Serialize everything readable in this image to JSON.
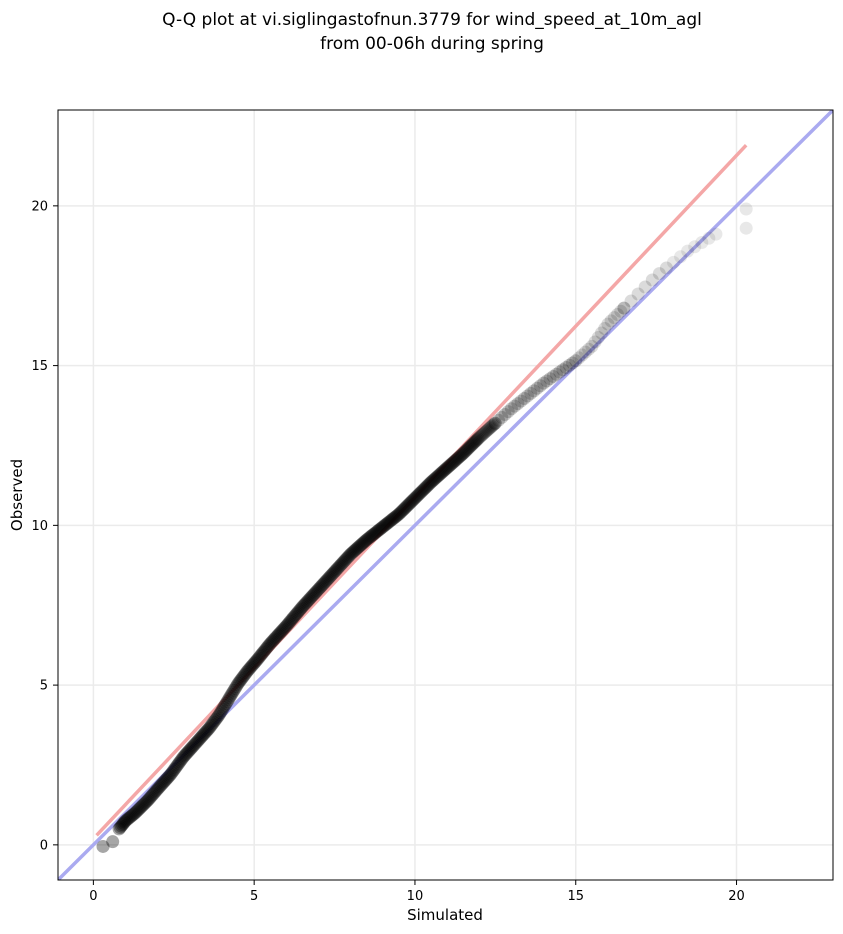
{
  "chart_data": {
    "type": "scatter",
    "title_line1": "Q-Q plot at vi.siglingastofnun.3779 for wind_speed_at_10m_agl",
    "title_line2": "from 00-06h during spring",
    "xlabel": "Simulated",
    "ylabel": "Observed",
    "xlim": [
      -1.1,
      23.0
    ],
    "ylim": [
      -1.1,
      23.0
    ],
    "xticks": [
      0,
      5,
      10,
      15,
      20
    ],
    "yticks": [
      0,
      5,
      10,
      15,
      20
    ],
    "grid": true,
    "identity_line": {
      "color": "#aaaaf0",
      "from": [
        -1.1,
        -1.1
      ],
      "to": [
        23.0,
        23.0
      ]
    },
    "fit_line": {
      "color": "#f4a7a7",
      "from": [
        0.1,
        0.3
      ],
      "to": [
        20.3,
        21.9
      ]
    },
    "quantile_curve": [
      [
        0.3,
        -0.05
      ],
      [
        0.6,
        0.1
      ],
      [
        0.8,
        0.5
      ],
      [
        1.0,
        0.75
      ],
      [
        1.3,
        1.0
      ],
      [
        1.7,
        1.4
      ],
      [
        2.0,
        1.75
      ],
      [
        2.4,
        2.2
      ],
      [
        2.8,
        2.75
      ],
      [
        3.2,
        3.2
      ],
      [
        3.6,
        3.65
      ],
      [
        3.9,
        4.05
      ],
      [
        4.2,
        4.55
      ],
      [
        4.5,
        5.05
      ],
      [
        4.8,
        5.45
      ],
      [
        5.1,
        5.8
      ],
      [
        5.5,
        6.3
      ],
      [
        6.0,
        6.85
      ],
      [
        6.5,
        7.45
      ],
      [
        7.0,
        8.0
      ],
      [
        7.5,
        8.55
      ],
      [
        8.0,
        9.1
      ],
      [
        8.5,
        9.55
      ],
      [
        9.0,
        9.95
      ],
      [
        9.5,
        10.35
      ],
      [
        10.0,
        10.85
      ],
      [
        10.5,
        11.35
      ],
      [
        11.0,
        11.8
      ],
      [
        11.5,
        12.25
      ],
      [
        12.0,
        12.75
      ],
      [
        12.5,
        13.2
      ],
      [
        13.0,
        13.65
      ],
      [
        13.5,
        14.05
      ],
      [
        14.0,
        14.45
      ],
      [
        14.5,
        14.8
      ],
      [
        15.0,
        15.15
      ],
      [
        15.5,
        15.6
      ],
      [
        16.0,
        16.3
      ],
      [
        16.5,
        16.8
      ],
      [
        17.0,
        17.3
      ],
      [
        17.5,
        17.8
      ],
      [
        18.0,
        18.2
      ],
      [
        18.5,
        18.6
      ],
      [
        19.0,
        18.9
      ],
      [
        19.5,
        19.2
      ],
      [
        20.3,
        19.3
      ],
      [
        20.3,
        19.9
      ]
    ]
  }
}
